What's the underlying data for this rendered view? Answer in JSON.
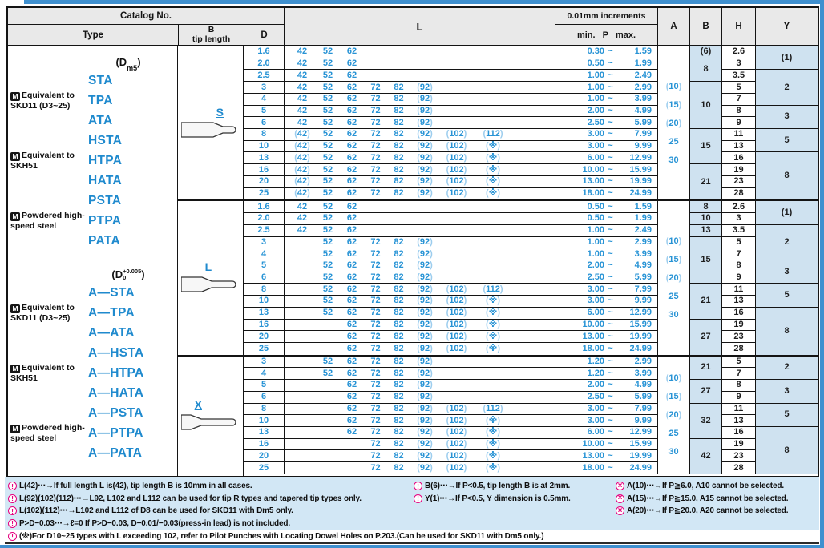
{
  "colors": {
    "accent_blue": "#2793d5",
    "light_paren_blue": "#9ccdee",
    "cell_blue": "#cfe2f0",
    "header_gray": "#e9e9e9",
    "footnote_bg": "#d2e7f5",
    "frame_blue": "#3f90cf",
    "care_pink": "#e6007e"
  },
  "header": {
    "catalog_no": "Catalog No.",
    "type": "Type",
    "tip_b": "B",
    "tip_length": "tip length",
    "d": "D",
    "l": "L",
    "increments": "0.01mm increments",
    "min": "min.",
    "p": "P",
    "max": "max.",
    "a": "A",
    "b": "B",
    "h": "H",
    "y": "Y"
  },
  "misc": {
    "tilde": "~"
  },
  "icons": {
    "m": "M",
    "care": "!",
    "cross": "×"
  },
  "type_column": {
    "groups": [
      {
        "dim": {
          "open": "(",
          "base": "D",
          "sub": "m5",
          "sup": "",
          "close": ")"
        },
        "materials": [
          {
            "label": "Equivalent to SKD11 (D3~25)",
            "types": [
              "STA",
              "TPA",
              "ATA"
            ]
          },
          {
            "label": "Equivalent to SKH51",
            "types": [
              "HSTA",
              "HTPA",
              "HATA"
            ]
          },
          {
            "label": "Powdered high-speed steel",
            "types": [
              "PSTA",
              "PTPA",
              "PATA"
            ]
          }
        ]
      },
      {
        "dim": {
          "open": "(",
          "base": "D",
          "sub": "0",
          "sup": "+0.005",
          "close": ")"
        },
        "materials": [
          {
            "label": "Equivalent to SKD11 (D3~25)",
            "types": [
              "A—STA",
              "A—TPA",
              "A—ATA"
            ]
          },
          {
            "label": "Equivalent to SKH51",
            "types": [
              "A—HSTA",
              "A—HTPA",
              "A—HATA"
            ]
          },
          {
            "label": "Powdered high-speed steel",
            "types": [
              "A—PSTA",
              "A—PTPA",
              "A—PATA"
            ]
          }
        ]
      }
    ]
  },
  "sections": [
    {
      "tip": "S",
      "rows": [
        {
          "d": "1.6",
          "l": [
            "42",
            "52",
            "62",
            "",
            "",
            "",
            "",
            ""
          ],
          "min": "0.30",
          "max": "1.59"
        },
        {
          "d": "2.0",
          "l": [
            "42",
            "52",
            "62",
            "",
            "",
            "",
            "",
            ""
          ],
          "min": "0.50",
          "max": "1.99"
        },
        {
          "d": "2.5",
          "l": [
            "42",
            "52",
            "62",
            "",
            "",
            "",
            "",
            ""
          ],
          "min": "1.00",
          "max": "2.49"
        },
        {
          "d": "3",
          "l": [
            "42",
            "52",
            "62",
            "72",
            "82",
            "(92)",
            "",
            ""
          ],
          "min": "1.00",
          "max": "2.99"
        },
        {
          "d": "4",
          "l": [
            "42",
            "52",
            "62",
            "72",
            "82",
            "(92)",
            "",
            ""
          ],
          "min": "1.00",
          "max": "3.99"
        },
        {
          "d": "5",
          "l": [
            "42",
            "52",
            "62",
            "72",
            "82",
            "(92)",
            "",
            ""
          ],
          "min": "2.00",
          "max": "4.99"
        },
        {
          "d": "6",
          "l": [
            "42",
            "52",
            "62",
            "72",
            "82",
            "(92)",
            "",
            ""
          ],
          "min": "2.50",
          "max": "5.99"
        },
        {
          "d": "8",
          "l": [
            "(42)",
            "52",
            "62",
            "72",
            "82",
            "(92)",
            "(102)",
            "(112)"
          ],
          "min": "3.00",
          "max": "7.99"
        },
        {
          "d": "10",
          "l": [
            "(42)",
            "52",
            "62",
            "72",
            "82",
            "(92)",
            "(102)",
            "(※)"
          ],
          "min": "3.00",
          "max": "9.99"
        },
        {
          "d": "13",
          "l": [
            "(42)",
            "52",
            "62",
            "72",
            "82",
            "(92)",
            "(102)",
            "(※)"
          ],
          "min": "6.00",
          "max": "12.99"
        },
        {
          "d": "16",
          "l": [
            "(42)",
            "52",
            "62",
            "72",
            "82",
            "(92)",
            "(102)",
            "(※)"
          ],
          "min": "10.00",
          "max": "15.99"
        },
        {
          "d": "20",
          "l": [
            "(42)",
            "52",
            "62",
            "72",
            "82",
            "(92)",
            "(102)",
            "(※)"
          ],
          "min": "13.00",
          "max": "19.99"
        },
        {
          "d": "25",
          "l": [
            "(42)",
            "52",
            "62",
            "72",
            "82",
            "(92)",
            "(102)",
            "(※)"
          ],
          "min": "18.00",
          "max": "24.99"
        }
      ],
      "a": [
        "(10)",
        "(15)",
        "(20)",
        "25",
        "30"
      ],
      "b": [
        [
          "(6)",
          1
        ],
        [
          "8",
          2
        ],
        [
          "10",
          4
        ],
        [
          "15",
          3
        ],
        [
          "21",
          3
        ]
      ],
      "h": [
        "2.6",
        "3",
        "3.5",
        "5",
        "7",
        "8",
        "9",
        "11",
        "13",
        "16",
        "19",
        "23",
        "28"
      ],
      "y": [
        [
          "(1)",
          2
        ],
        [
          "2",
          3
        ],
        [
          "3",
          2
        ],
        [
          "5",
          2
        ],
        [
          "8",
          4
        ]
      ]
    },
    {
      "tip": "L",
      "rows": [
        {
          "d": "1.6",
          "l": [
            "42",
            "52",
            "62",
            "",
            "",
            "",
            "",
            ""
          ],
          "min": "0.50",
          "max": "1.59"
        },
        {
          "d": "2.0",
          "l": [
            "42",
            "52",
            "62",
            "",
            "",
            "",
            "",
            ""
          ],
          "min": "0.50",
          "max": "1.99"
        },
        {
          "d": "2.5",
          "l": [
            "42",
            "52",
            "62",
            "",
            "",
            "",
            "",
            ""
          ],
          "min": "1.00",
          "max": "2.49"
        },
        {
          "d": "3",
          "l": [
            "",
            "52",
            "62",
            "72",
            "82",
            "(92)",
            "",
            ""
          ],
          "min": "1.00",
          "max": "2.99"
        },
        {
          "d": "4",
          "l": [
            "",
            "52",
            "62",
            "72",
            "82",
            "(92)",
            "",
            ""
          ],
          "min": "1.00",
          "max": "3.99"
        },
        {
          "d": "5",
          "l": [
            "",
            "52",
            "62",
            "72",
            "82",
            "(92)",
            "",
            ""
          ],
          "min": "2.00",
          "max": "4.99"
        },
        {
          "d": "6",
          "l": [
            "",
            "52",
            "62",
            "72",
            "82",
            "(92)",
            "",
            ""
          ],
          "min": "2.50",
          "max": "5.99"
        },
        {
          "d": "8",
          "l": [
            "",
            "52",
            "62",
            "72",
            "82",
            "(92)",
            "(102)",
            "(112)"
          ],
          "min": "3.00",
          "max": "7.99"
        },
        {
          "d": "10",
          "l": [
            "",
            "52",
            "62",
            "72",
            "82",
            "(92)",
            "(102)",
            "(※)"
          ],
          "min": "3.00",
          "max": "9.99"
        },
        {
          "d": "13",
          "l": [
            "",
            "52",
            "62",
            "72",
            "82",
            "(92)",
            "(102)",
            "(※)"
          ],
          "min": "6.00",
          "max": "12.99"
        },
        {
          "d": "16",
          "l": [
            "",
            "",
            "62",
            "72",
            "82",
            "(92)",
            "(102)",
            "(※)"
          ],
          "min": "10.00",
          "max": "15.99"
        },
        {
          "d": "20",
          "l": [
            "",
            "",
            "62",
            "72",
            "82",
            "(92)",
            "(102)",
            "(※)"
          ],
          "min": "13.00",
          "max": "19.99"
        },
        {
          "d": "25",
          "l": [
            "",
            "",
            "62",
            "72",
            "82",
            "(92)",
            "(102)",
            "(※)"
          ],
          "min": "18.00",
          "max": "24.99"
        }
      ],
      "a": [
        "(10)",
        "(15)",
        "(20)",
        "25",
        "30"
      ],
      "b": [
        [
          "8",
          1
        ],
        [
          "10",
          1
        ],
        [
          "13",
          1
        ],
        [
          "15",
          4
        ],
        [
          "21",
          3
        ],
        [
          "27",
          3
        ]
      ],
      "h": [
        "2.6",
        "3",
        "3.5",
        "5",
        "7",
        "8",
        "9",
        "11",
        "13",
        "16",
        "19",
        "23",
        "28"
      ],
      "y": [
        [
          "(1)",
          2
        ],
        [
          "2",
          3
        ],
        [
          "3",
          2
        ],
        [
          "5",
          2
        ],
        [
          "8",
          4
        ]
      ]
    },
    {
      "tip": "X",
      "rows": [
        {
          "d": "3",
          "l": [
            "",
            "52",
            "62",
            "72",
            "82",
            "(92)",
            "",
            ""
          ],
          "min": "1.20",
          "max": "2.99"
        },
        {
          "d": "4",
          "l": [
            "",
            "52",
            "62",
            "72",
            "82",
            "(92)",
            "",
            ""
          ],
          "min": "1.20",
          "max": "3.99"
        },
        {
          "d": "5",
          "l": [
            "",
            "",
            "62",
            "72",
            "82",
            "(92)",
            "",
            ""
          ],
          "min": "2.00",
          "max": "4.99"
        },
        {
          "d": "6",
          "l": [
            "",
            "",
            "62",
            "72",
            "82",
            "(92)",
            "",
            ""
          ],
          "min": "2.50",
          "max": "5.99"
        },
        {
          "d": "8",
          "l": [
            "",
            "",
            "62",
            "72",
            "82",
            "(92)",
            "(102)",
            "(112)"
          ],
          "min": "3.00",
          "max": "7.99"
        },
        {
          "d": "10",
          "l": [
            "",
            "",
            "62",
            "72",
            "82",
            "(92)",
            "(102)",
            "(※)"
          ],
          "min": "3.00",
          "max": "9.99"
        },
        {
          "d": "13",
          "l": [
            "",
            "",
            "62",
            "72",
            "82",
            "(92)",
            "(102)",
            "(※)"
          ],
          "min": "6.00",
          "max": "12.99"
        },
        {
          "d": "16",
          "l": [
            "",
            "",
            "",
            "72",
            "82",
            "(92)",
            "(102)",
            "(※)"
          ],
          "min": "10.00",
          "max": "15.99"
        },
        {
          "d": "20",
          "l": [
            "",
            "",
            "",
            "72",
            "82",
            "(92)",
            "(102)",
            "(※)"
          ],
          "min": "13.00",
          "max": "19.99"
        },
        {
          "d": "25",
          "l": [
            "",
            "",
            "",
            "72",
            "82",
            "(92)",
            "(102)",
            "(※)"
          ],
          "min": "18.00",
          "max": "24.99"
        }
      ],
      "a": [
        "(10)",
        "(15)",
        "(20)",
        "25",
        "30"
      ],
      "b": [
        [
          "21",
          2
        ],
        [
          "27",
          2
        ],
        [
          "32",
          3
        ],
        [
          "42",
          3
        ]
      ],
      "h": [
        "5",
        "7",
        "8",
        "9",
        "11",
        "13",
        "16",
        "19",
        "23",
        "28"
      ],
      "y": [
        [
          "2",
          2
        ],
        [
          "3",
          2
        ],
        [
          "5",
          2
        ],
        [
          "8",
          4
        ]
      ]
    }
  ],
  "footnotes": {
    "left": [
      {
        "icon": "care",
        "text": "L(42)⋯→If full length L is(42), tip length B is 10mm in all cases."
      },
      {
        "icon": "care",
        "text": "L(92)(102)(112)⋯→L92, L102 and L112 can be used for tip R types and tapered tip types only."
      },
      {
        "icon": "care",
        "text": "L(102)(112)⋯→L102 and L112 of D8 can be used for SKD11 with Dm5 only."
      },
      {
        "icon": "care",
        "text": "P>D−0.03⋯→ℓ=0   If P>D−0.03, D−0.01/−0.03(press-in lead) is not included."
      },
      {
        "icon": "care",
        "text": "(※)For D10~25 types with L exceeding 102, refer to Pilot Punches with Locating Dowel Holes on P.203.(Can be used for SKD11 with Dm5 only.)"
      }
    ],
    "mid": [
      {
        "icon": "care",
        "text": "B(6)⋯→If P<0.5, tip length B is at 2mm."
      },
      {
        "icon": "care",
        "text": "Y(1)⋯→If P<0.5, Y dimension is 0.5mm."
      }
    ],
    "right": [
      {
        "icon": "cross",
        "text": "A(10)⋯→If P≧6.0, A10 cannot be selected."
      },
      {
        "icon": "cross",
        "text": "A(15)⋯→If P≧15.0, A15 cannot be selected."
      },
      {
        "icon": "cross",
        "text": "A(20)⋯→If P≧20.0, A20 cannot be selected."
      }
    ]
  }
}
